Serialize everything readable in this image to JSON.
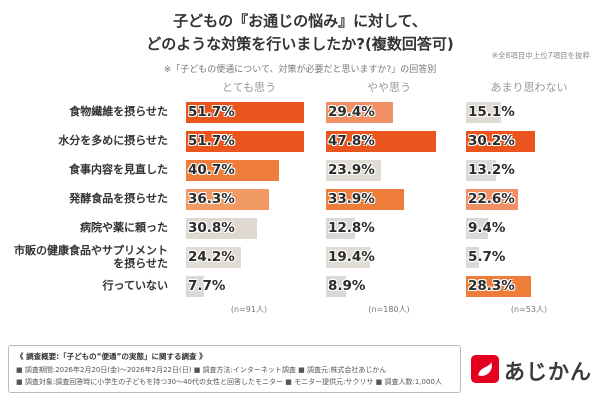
{
  "title": {
    "line1": "子どもの『お通じの悩み』に対して、",
    "line2": "どのような対策を行いましたか?(複数回答可)",
    "note": "※全8項目中上位7項目を抜粋"
  },
  "subtitle": "※「子どもの便通について、対策が必要だと思いますか?」の回答別",
  "chart_data": {
    "type": "bar",
    "orientation": "horizontal",
    "title": "子どもの『お通じの悩み』に対して、どのような対策を行いましたか?(複数回答可)",
    "unit": "%",
    "xlim": [
      0,
      55
    ],
    "legend_position": "column-headers",
    "categories": [
      "食物繊維を摂らせた",
      "水分を多めに摂らせた",
      "食事内容を見直した",
      "発酵食品を摂らせた",
      "病院や薬に頼った",
      "市販の健康食品やサプリメントを摂らせた",
      "行っていない"
    ],
    "series": [
      {
        "name": "とても思う",
        "n_label": "(n=91人)",
        "values": [
          51.7,
          51.7,
          40.7,
          36.3,
          30.8,
          24.2,
          7.7
        ],
        "colors": [
          "#e9551d",
          "#e9551d",
          "#ee7d3b",
          "#f29a63",
          "#ded8d0",
          "#e0dbd4",
          "#d9d9d9"
        ]
      },
      {
        "name": "やや思う",
        "n_label": "(n=180人)",
        "values": [
          29.4,
          47.8,
          23.9,
          33.9,
          12.8,
          19.4,
          8.9
        ],
        "colors": [
          "#f19064",
          "#e9551d",
          "#e0dbd4",
          "#ee7d3b",
          "#d9d9d9",
          "#e0dbd4",
          "#d9d9d9"
        ]
      },
      {
        "name": "あまり思わない",
        "n_label": "(n=53人)",
        "values": [
          15.1,
          30.2,
          13.2,
          22.6,
          9.4,
          5.7,
          28.3
        ],
        "colors": [
          "#e0dbd4",
          "#e9551d",
          "#d9d9d9",
          "#f19064",
          "#d9d9d9",
          "#d9d9d9",
          "#ee7d3b"
        ]
      }
    ]
  },
  "footer": {
    "heading": "《 調査概要:「子どもの“便通”の実態」に関する調査 》",
    "lines": [
      "■ 調査期間:2026年2月20日(金)〜2026年2月22日(日) ■ 調査方法:インターネット調査 ■ 調査元:株式会社あじかん",
      "■ 調査対象:調査回答時に小学生の子どもを持つ30〜40代の女性と回答したモニター ■ モニター提供元:サクリサ ■ 調査人数:1,000人"
    ]
  },
  "logo": {
    "text": "あじかん"
  },
  "colors": {
    "accent": "#e9551d",
    "logo_red": "#e6001f",
    "gray_bar": "#d9d9d9"
  }
}
